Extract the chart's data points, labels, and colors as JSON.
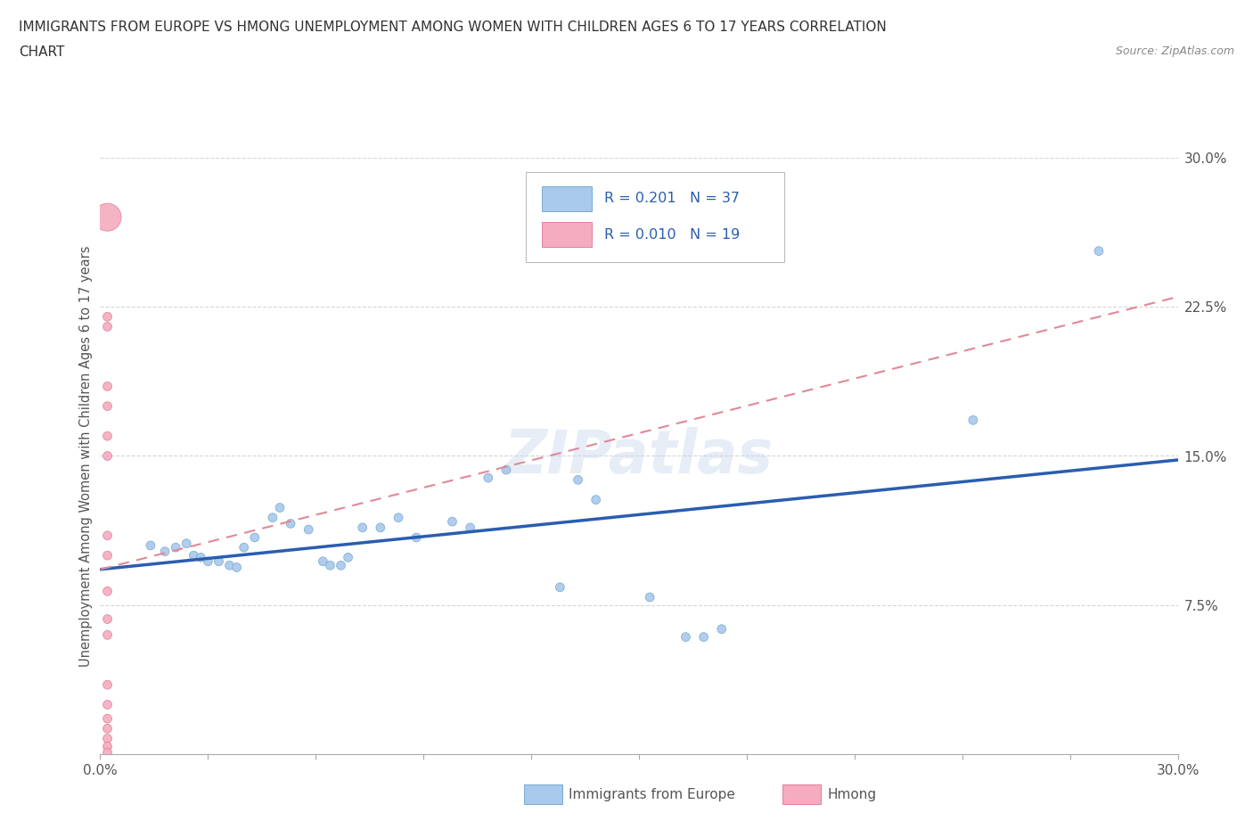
{
  "title_line1": "IMMIGRANTS FROM EUROPE VS HMONG UNEMPLOYMENT AMONG WOMEN WITH CHILDREN AGES 6 TO 17 YEARS CORRELATION",
  "title_line2": "CHART",
  "source": "Source: ZipAtlas.com",
  "ylabel": "Unemployment Among Women with Children Ages 6 to 17 years",
  "xlim": [
    0.0,
    0.3
  ],
  "ylim": [
    0.0,
    0.3
  ],
  "watermark": "ZIPatlas",
  "blue_color": "#A8C8EC",
  "blue_edge_color": "#7AACCF",
  "pink_color": "#F4ACBE",
  "pink_edge_color": "#E080A0",
  "trend_blue_color": "#2A5DB0",
  "trend_pink_color": "#E08898",
  "blue_scatter": [
    [
      0.014,
      0.105
    ],
    [
      0.018,
      0.102
    ],
    [
      0.021,
      0.104
    ],
    [
      0.024,
      0.106
    ],
    [
      0.026,
      0.1
    ],
    [
      0.028,
      0.099
    ],
    [
      0.03,
      0.097
    ],
    [
      0.033,
      0.097
    ],
    [
      0.036,
      0.095
    ],
    [
      0.038,
      0.094
    ],
    [
      0.04,
      0.104
    ],
    [
      0.043,
      0.109
    ],
    [
      0.048,
      0.119
    ],
    [
      0.05,
      0.124
    ],
    [
      0.053,
      0.116
    ],
    [
      0.058,
      0.113
    ],
    [
      0.062,
      0.097
    ],
    [
      0.064,
      0.095
    ],
    [
      0.067,
      0.095
    ],
    [
      0.069,
      0.099
    ],
    [
      0.073,
      0.114
    ],
    [
      0.078,
      0.114
    ],
    [
      0.083,
      0.119
    ],
    [
      0.088,
      0.109
    ],
    [
      0.098,
      0.117
    ],
    [
      0.103,
      0.114
    ],
    [
      0.108,
      0.139
    ],
    [
      0.113,
      0.143
    ],
    [
      0.128,
      0.084
    ],
    [
      0.133,
      0.138
    ],
    [
      0.138,
      0.128
    ],
    [
      0.153,
      0.079
    ],
    [
      0.163,
      0.059
    ],
    [
      0.168,
      0.059
    ],
    [
      0.173,
      0.063
    ],
    [
      0.243,
      0.168
    ],
    [
      0.278,
      0.253
    ]
  ],
  "blue_sizes": [
    50,
    50,
    50,
    50,
    50,
    50,
    50,
    50,
    50,
    50,
    50,
    50,
    50,
    50,
    50,
    50,
    50,
    50,
    50,
    50,
    50,
    50,
    50,
    50,
    50,
    50,
    50,
    50,
    50,
    50,
    50,
    50,
    50,
    50,
    50,
    50,
    50
  ],
  "pink_scatter": [
    [
      0.002,
      0.27
    ],
    [
      0.002,
      0.22
    ],
    [
      0.002,
      0.215
    ],
    [
      0.002,
      0.185
    ],
    [
      0.002,
      0.175
    ],
    [
      0.002,
      0.16
    ],
    [
      0.002,
      0.15
    ],
    [
      0.002,
      0.11
    ],
    [
      0.002,
      0.1
    ],
    [
      0.002,
      0.082
    ],
    [
      0.002,
      0.068
    ],
    [
      0.002,
      0.06
    ],
    [
      0.002,
      0.035
    ],
    [
      0.002,
      0.025
    ],
    [
      0.002,
      0.018
    ],
    [
      0.002,
      0.013
    ],
    [
      0.002,
      0.008
    ],
    [
      0.002,
      0.004
    ],
    [
      0.002,
      0.001
    ]
  ],
  "pink_sizes": [
    500,
    50,
    50,
    50,
    50,
    50,
    50,
    50,
    50,
    50,
    50,
    50,
    50,
    50,
    50,
    50,
    50,
    50,
    50
  ],
  "blue_trend_x": [
    0.0,
    0.3
  ],
  "blue_trend_y": [
    0.093,
    0.148
  ],
  "pink_trend_x": [
    0.0,
    0.3
  ],
  "pink_trend_y": [
    0.093,
    0.23
  ],
  "legend_text_color": "#2A5DB0",
  "legend_label_color": "#333333",
  "bottom_legend_label_color": "#555555"
}
